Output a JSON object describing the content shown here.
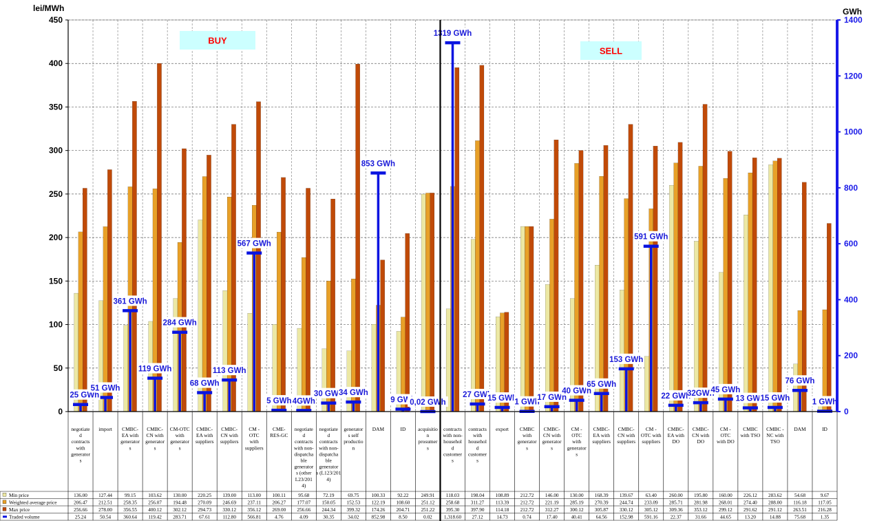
{
  "chart_data": {
    "type": "bar",
    "y_left_label": "lei/MWh",
    "y_right_label": "GWh",
    "ylim_left": [
      0,
      450
    ],
    "ylim_right": [
      0,
      1400
    ],
    "yticks_left": [
      "0",
      "50",
      "100",
      "150",
      "200",
      "250",
      "300",
      "350",
      "400",
      "450"
    ],
    "yticks_right": [
      "0",
      "200",
      "400",
      "600",
      "800",
      "1000",
      "1200",
      "1400"
    ],
    "grid": true,
    "section_labels": [
      {
        "text": "BUY",
        "side": "buy"
      },
      {
        "text": "SELL",
        "side": "sell"
      }
    ],
    "categories": [
      "negotiated contracts with generators",
      "import",
      "CMBC-EA with generators",
      "CMBC-CN with generators",
      "CM-OTC with generators",
      "CMBC-EA with suppliers",
      "CMBC-CN with suppliers",
      "CM - OTC with suppliers",
      "CME-RES-GC",
      "negotiated contracts with non-dispatchable generators (other L23/2014)",
      "negotiated contracts with non-dispatchable generators (L123/2014)",
      "generators self production",
      "DAM",
      "ID",
      "acquisition prosumers",
      "contracts with non-household customers",
      "contracts with household customers",
      "export",
      "CMBC with generators",
      "CMBC-CN with generators",
      "CM - OTC with generators",
      "CMBC-EA with suppliers",
      "CMBC-CN with suppliers",
      "CM - OTC with suppliers",
      "CMBC-EA with DO",
      "CMBC-CN with DO",
      "CM - OTC with DO",
      "CMBC with TSO",
      "CMBC - NC with TSO",
      "DAM",
      "ID"
    ],
    "category_lines": [
      [
        "negotiate",
        "d",
        "contracts",
        "with",
        "generator",
        "s"
      ],
      [
        "import"
      ],
      [
        "CMBC-",
        "EA with",
        "generator",
        "s"
      ],
      [
        "CMBC-",
        "CN with",
        "generator",
        "s"
      ],
      [
        "CM-OTC",
        "with",
        "generator",
        "s"
      ],
      [
        "CMBC-",
        "EA with",
        "suppliers"
      ],
      [
        "CMBC-",
        "CN with",
        "suppliers"
      ],
      [
        "CM -",
        "OTC",
        "with",
        "suppliers"
      ],
      [
        "CME-",
        "RES-GC"
      ],
      [
        "negotiate",
        "d",
        "contracts",
        "with non-",
        "dispatcha",
        "ble",
        "generator",
        "s (other",
        "L23/201",
        "4)"
      ],
      [
        "negotiate",
        "d",
        "contracts",
        "with non-",
        "dispatcha",
        "ble",
        "generator",
        "s (L123/201",
        "4)"
      ],
      [
        "generator",
        "s self",
        "productio",
        "n"
      ],
      [
        "DAM"
      ],
      [
        "ID"
      ],
      [
        "acquisitio",
        "n",
        "prosumer",
        "s"
      ],
      [
        "contracts",
        "with non-",
        "househol",
        "d",
        "customer",
        "s"
      ],
      [
        "contracts",
        "with",
        "househol",
        "d",
        "customer",
        "s"
      ],
      [
        "export"
      ],
      [
        "CMBC",
        "with",
        "generator",
        "s"
      ],
      [
        "CMBC-",
        "CN with",
        "generator",
        "s"
      ],
      [
        "CM -",
        "OTC",
        "with",
        "generator",
        "s"
      ],
      [
        "CMBC-",
        "EA with",
        "suppliers"
      ],
      [
        "CMBC-",
        "CN with",
        "suppliers"
      ],
      [
        "CM -",
        "OTC with",
        "suppliers"
      ],
      [
        "CMBC-",
        "EA with",
        "DO"
      ],
      [
        "CMBC-",
        "CN with",
        "DO"
      ],
      [
        "CM -",
        "OTC",
        "with DO"
      ],
      [
        "CMBC",
        "with TSO"
      ],
      [
        "CMBC -",
        "NC with",
        "TSO"
      ],
      [
        "DAM"
      ],
      [
        "ID"
      ]
    ],
    "series": [
      {
        "name": "Min price",
        "axis": "left",
        "color": "#ECE8A4",
        "values": [
          136.0,
          127.44,
          99.15,
          103.62,
          130.0,
          220.25,
          139.0,
          113.0,
          100.11,
          95.68,
          72.19,
          69.75,
          100.33,
          92.22,
          249.91,
          118.03,
          198.04,
          108.89,
          212.72,
          146.0,
          130.0,
          168.39,
          139.67,
          63.4,
          260.0,
          195.8,
          160.0,
          226.12,
          283.62,
          54.68,
          9.67
        ],
        "labels": [
          "136.00",
          "127.44",
          "99.15",
          "103.62",
          "130.00",
          "220.25",
          "139.00",
          "113.00",
          "100.11",
          "95.68",
          "72.19",
          "69.75",
          "100.33",
          "92.22",
          "249.91",
          "118.03",
          "198.04",
          "108.89",
          "212.72",
          "146.00",
          "130.00",
          "168.39",
          "139.67",
          "63.40",
          "260.00",
          "195.80",
          "160.00",
          "226.12",
          "283.62",
          "54.68",
          "9.67"
        ]
      },
      {
        "name": "Weighted average price",
        "axis": "left",
        "color": "#E8A028",
        "values": [
          206.47,
          212.51,
          258.35,
          256.07,
          194.48,
          270.09,
          246.69,
          237.11,
          206.27,
          177.07,
          150.05,
          152.53,
          122.19,
          108.6,
          251.12,
          258.68,
          311.27,
          113.39,
          212.72,
          221.19,
          285.19,
          270.39,
          244.74,
          233.09,
          285.71,
          281.98,
          268.01,
          274.4,
          288.0,
          116.18,
          117.05
        ],
        "labels": [
          "206.47",
          "212.51",
          "258.35",
          "256.07",
          "194.48",
          "270.09",
          "246.69",
          "237.11",
          "206.27",
          "177.07",
          "150.05",
          "152.53",
          "122.19",
          "108.60",
          "251.12",
          "258.68",
          "311.27",
          "113.39",
          "212.72",
          "221.19",
          "285.19",
          "270.39",
          "244.74",
          "233.09",
          "285.71",
          "281.98",
          "268.01",
          "274.40",
          "288.00",
          "116.18",
          "117.05"
        ]
      },
      {
        "name": "Max price",
        "axis": "left",
        "color": "#C04A08",
        "values": [
          256.66,
          278.0,
          356.55,
          400.12,
          302.12,
          294.73,
          330.12,
          356.12,
          269.0,
          256.66,
          244.34,
          399.32,
          174.26,
          204.71,
          251.22,
          395.3,
          397.9,
          114.18,
          212.72,
          312.27,
          300.12,
          305.87,
          330.12,
          305.12,
          309.36,
          353.12,
          299.12,
          291.62,
          291.12,
          263.51,
          216.28
        ],
        "labels": [
          "256.66",
          "278.00",
          "356.55",
          "400.12",
          "302.12",
          "294.73",
          "330.12",
          "356.12",
          "269.00",
          "256.66",
          "244.34",
          "399.32",
          "174.26",
          "204.71",
          "251.22",
          "395.30",
          "397.90",
          "114.18",
          "212.72",
          "312.27",
          "300.12",
          "305.87",
          "330.12",
          "305.12",
          "309.36",
          "353.12",
          "299.12",
          "291.62",
          "291.12",
          "263.51",
          "216.28"
        ]
      },
      {
        "name": "Traded volume",
        "axis": "right",
        "color": "#0A14E0",
        "values": [
          25.24,
          50.54,
          360.64,
          119.42,
          283.71,
          67.61,
          112.8,
          566.81,
          4.76,
          4.09,
          30.35,
          34.02,
          852.98,
          8.5,
          0.02,
          1318.6,
          27.12,
          14.73,
          0.74,
          17.4,
          40.41,
          64.56,
          152.98,
          591.16,
          22.37,
          31.66,
          44.65,
          13.2,
          14.88,
          75.68,
          1.35
        ],
        "labels": [
          "25.24",
          "50.54",
          "360.64",
          "119.42",
          "283.71",
          "67.61",
          "112.80",
          "566.81",
          "4.76",
          "4.09",
          "30.35",
          "34.02",
          "852.98",
          "8.50",
          "0.02",
          "1,318.60",
          "27.12",
          "14.73",
          "0.74",
          "17.40",
          "40.41",
          "64.56",
          "152.98",
          "591.16",
          "22.37",
          "31.66",
          "44.65",
          "13.20",
          "14.88",
          "75.68",
          "1.35"
        ],
        "annotations": [
          "25 GWh",
          "51 GWh",
          "361 GWh",
          "119 GWh",
          "284 GWh",
          "68 GWh",
          "113 GWh",
          "567 GWh",
          "5 GWh",
          "4GWh",
          "30 GWh",
          "34 GWh",
          "853 GWh",
          "9 GWh",
          "0,02 GWh",
          "1319 GWh",
          "27 GWh",
          "15 GWh",
          "1 GWh",
          "17 GWh",
          "40 GWh",
          "65 GWh",
          "153 GWh",
          "591 GWh",
          "22 GWh",
          "32GWh",
          "45 GWh",
          "13 GWh",
          "15 GWh",
          "76 GWh",
          "1 GWh"
        ]
      }
    ]
  }
}
